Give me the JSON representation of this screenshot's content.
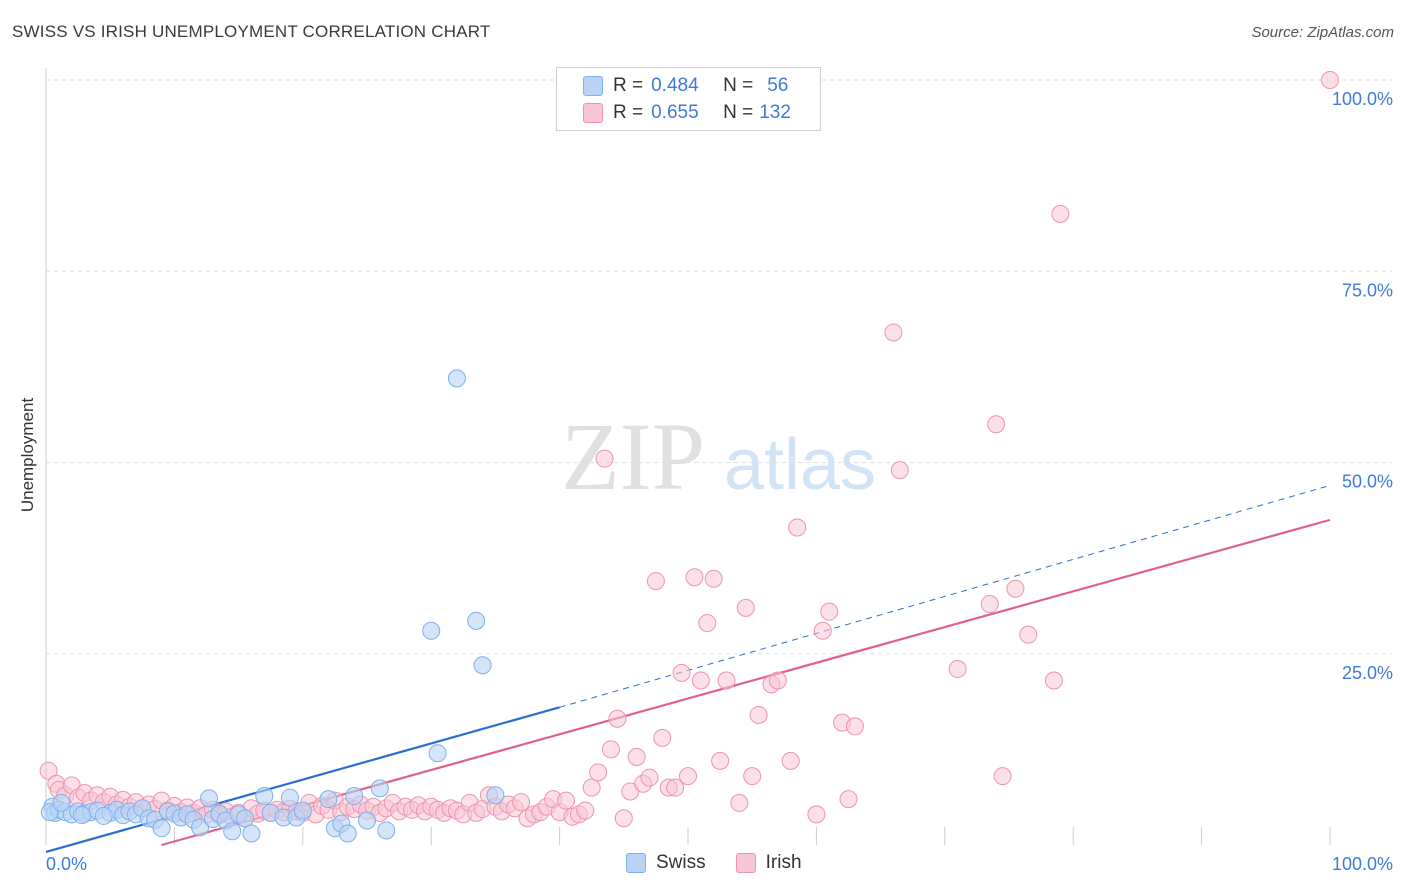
{
  "title": "SWISS VS IRISH UNEMPLOYMENT CORRELATION CHART",
  "source": "Source: ZipAtlas.com",
  "watermark_zip": "ZIP",
  "watermark_atlas": "atlas",
  "colors": {
    "swiss": "#7fb0ea",
    "swiss_fill": "#b9d3f5",
    "swiss_line": "#2a6fcf",
    "irish": "#ee94b0",
    "irish_fill": "#f8c6d6",
    "irish_line": "#e0608c",
    "tick_label": "#3d7bd9",
    "grid": "#dddddd"
  },
  "legend": {
    "swiss": {
      "r_label": "R =",
      "r_value": "0.484",
      "n_label": "N =",
      "n_value": "56"
    },
    "irish": {
      "r_label": "R =",
      "r_value": "0.655",
      "n_label": "N =",
      "n_value": "132"
    }
  },
  "chart_data": {
    "type": "scatter",
    "title": "SWISS VS IRISH UNEMPLOYMENT CORRELATION CHART",
    "xlabel": "",
    "ylabel": "Unemployment",
    "xlim": [
      0,
      100
    ],
    "ylim": [
      0,
      100
    ],
    "x_tick_labels": [
      "0.0%",
      "100.0%"
    ],
    "y_tick_labels": [
      "25.0%",
      "50.0%",
      "75.0%",
      "100.0%"
    ],
    "y_ticks": [
      25,
      50,
      75,
      100
    ],
    "grid": true,
    "legend_position": "top-center",
    "series": [
      {
        "name": "Swiss",
        "r": 0.484,
        "n": 56,
        "trend": {
          "x0": 0,
          "y0": -0.9,
          "x1": 40,
          "y1": 18,
          "dashed_to_x": 100,
          "dashed_to_y": 47
        },
        "points": [
          [
            0.5,
            5.0
          ],
          [
            0.7,
            4.2
          ],
          [
            1.0,
            4.6
          ],
          [
            1.5,
            4.3
          ],
          [
            2.0,
            4.0
          ],
          [
            2.5,
            4.4
          ],
          [
            3.0,
            4.1
          ],
          [
            3.5,
            4.3
          ],
          [
            4.0,
            4.5
          ],
          [
            5.0,
            4.2
          ],
          [
            5.5,
            4.6
          ],
          [
            6.0,
            3.9
          ],
          [
            6.5,
            4.4
          ],
          [
            7.0,
            4.0
          ],
          [
            7.5,
            4.8
          ],
          [
            8.0,
            3.5
          ],
          [
            8.5,
            3.3
          ],
          [
            9.0,
            2.2
          ],
          [
            9.5,
            4.4
          ],
          [
            10.0,
            4.1
          ],
          [
            10.5,
            3.6
          ],
          [
            11.0,
            4.0
          ],
          [
            11.5,
            3.3
          ],
          [
            12.0,
            2.3
          ],
          [
            12.7,
            6.1
          ],
          [
            13.0,
            3.4
          ],
          [
            13.5,
            4.1
          ],
          [
            14.0,
            3.2
          ],
          [
            14.5,
            1.8
          ],
          [
            15.0,
            4.0
          ],
          [
            15.5,
            3.5
          ],
          [
            16.0,
            1.5
          ],
          [
            17.0,
            6.4
          ],
          [
            17.5,
            4.2
          ],
          [
            18.5,
            3.6
          ],
          [
            19.0,
            6.2
          ],
          [
            19.5,
            3.6
          ],
          [
            20.0,
            4.5
          ],
          [
            22.0,
            6.0
          ],
          [
            22.5,
            2.2
          ],
          [
            23.0,
            2.8
          ],
          [
            23.5,
            1.5
          ],
          [
            24.0,
            6.4
          ],
          [
            25.0,
            3.2
          ],
          [
            26.0,
            7.4
          ],
          [
            26.5,
            1.9
          ],
          [
            30.0,
            28.0
          ],
          [
            30.5,
            12.0
          ],
          [
            32.0,
            61.0
          ],
          [
            33.5,
            29.3
          ],
          [
            34.0,
            23.5
          ],
          [
            35.0,
            6.5
          ],
          [
            0.3,
            4.3
          ],
          [
            1.2,
            5.5
          ],
          [
            2.8,
            3.9
          ],
          [
            4.5,
            3.8
          ]
        ]
      },
      {
        "name": "Irish",
        "r": 0.655,
        "n": 132,
        "trend": {
          "x0": 9,
          "y0": 0,
          "x1": 100,
          "y1": 42.5
        },
        "points": [
          [
            0.2,
            9.7
          ],
          [
            0.8,
            8.0
          ],
          [
            1.0,
            7.2
          ],
          [
            1.5,
            6.5
          ],
          [
            2.0,
            7.8
          ],
          [
            2.5,
            6.2
          ],
          [
            3.0,
            6.8
          ],
          [
            3.5,
            5.8
          ],
          [
            4.0,
            6.5
          ],
          [
            4.5,
            5.6
          ],
          [
            5.0,
            6.3
          ],
          [
            5.5,
            5.3
          ],
          [
            6.0,
            5.9
          ],
          [
            6.5,
            5.0
          ],
          [
            7.0,
            5.6
          ],
          [
            7.5,
            4.8
          ],
          [
            8.0,
            5.3
          ],
          [
            8.5,
            4.7
          ],
          [
            9.0,
            5.8
          ],
          [
            9.5,
            4.5
          ],
          [
            10.0,
            5.1
          ],
          [
            10.5,
            4.3
          ],
          [
            11.0,
            4.9
          ],
          [
            11.5,
            4.2
          ],
          [
            12.0,
            4.8
          ],
          [
            12.5,
            4.0
          ],
          [
            13.0,
            4.6
          ],
          [
            13.5,
            3.9
          ],
          [
            14.0,
            4.4
          ],
          [
            14.5,
            3.7
          ],
          [
            15.0,
            4.2
          ],
          [
            15.5,
            3.5
          ],
          [
            16.0,
            4.8
          ],
          [
            16.5,
            4.1
          ],
          [
            17.0,
            4.5
          ],
          [
            17.5,
            4.2
          ],
          [
            18.0,
            4.6
          ],
          [
            18.5,
            4.3
          ],
          [
            19.0,
            4.7
          ],
          [
            19.5,
            4.4
          ],
          [
            20.0,
            4.2
          ],
          [
            20.5,
            5.5
          ],
          [
            21.0,
            4.0
          ],
          [
            21.5,
            5.1
          ],
          [
            22.0,
            4.6
          ],
          [
            22.5,
            5.8
          ],
          [
            23.0,
            4.3
          ],
          [
            23.5,
            5.0
          ],
          [
            24.0,
            4.7
          ],
          [
            24.5,
            5.3
          ],
          [
            25.0,
            4.5
          ],
          [
            25.5,
            5.0
          ],
          [
            26.0,
            4.2
          ],
          [
            26.5,
            4.8
          ],
          [
            27.0,
            5.5
          ],
          [
            27.5,
            4.4
          ],
          [
            28.0,
            5.0
          ],
          [
            28.5,
            4.6
          ],
          [
            29.0,
            5.2
          ],
          [
            29.5,
            4.4
          ],
          [
            30.0,
            5.0
          ],
          [
            30.5,
            4.6
          ],
          [
            31.0,
            4.2
          ],
          [
            31.5,
            4.8
          ],
          [
            32.0,
            4.5
          ],
          [
            32.5,
            4.0
          ],
          [
            33.0,
            5.5
          ],
          [
            33.5,
            4.2
          ],
          [
            34.0,
            4.7
          ],
          [
            34.5,
            6.5
          ],
          [
            35.0,
            5.0
          ],
          [
            35.5,
            4.4
          ],
          [
            36.0,
            5.3
          ],
          [
            36.5,
            4.8
          ],
          [
            37.0,
            5.6
          ],
          [
            37.5,
            3.5
          ],
          [
            38.0,
            4.0
          ],
          [
            38.5,
            4.3
          ],
          [
            39.0,
            5.0
          ],
          [
            39.5,
            6.0
          ],
          [
            40.0,
            4.3
          ],
          [
            40.5,
            5.8
          ],
          [
            41.0,
            3.7
          ],
          [
            41.5,
            4.0
          ],
          [
            42.0,
            4.5
          ],
          [
            42.5,
            7.5
          ],
          [
            43.0,
            9.5
          ],
          [
            43.5,
            50.5
          ],
          [
            44.0,
            12.5
          ],
          [
            44.5,
            16.5
          ],
          [
            45.0,
            3.5
          ],
          [
            45.5,
            7.0
          ],
          [
            46.0,
            11.5
          ],
          [
            46.5,
            8.0
          ],
          [
            47.0,
            8.8
          ],
          [
            47.5,
            34.5
          ],
          [
            48.0,
            14.0
          ],
          [
            48.5,
            7.5
          ],
          [
            49.0,
            7.5
          ],
          [
            49.5,
            22.5
          ],
          [
            50.0,
            9.0
          ],
          [
            50.5,
            35.0
          ],
          [
            51.0,
            21.5
          ],
          [
            51.5,
            29.0
          ],
          [
            52.0,
            34.8
          ],
          [
            52.5,
            11.0
          ],
          [
            53.0,
            21.5
          ],
          [
            54.0,
            5.5
          ],
          [
            54.5,
            31.0
          ],
          [
            55.0,
            9.0
          ],
          [
            55.5,
            17.0
          ],
          [
            56.5,
            21.0
          ],
          [
            57.0,
            21.5
          ],
          [
            58.0,
            11.0
          ],
          [
            58.5,
            41.5
          ],
          [
            60.0,
            4.0
          ],
          [
            60.5,
            28.0
          ],
          [
            61.0,
            30.5
          ],
          [
            62.0,
            16.0
          ],
          [
            62.5,
            6.0
          ],
          [
            63.0,
            15.5
          ],
          [
            66.0,
            67.0
          ],
          [
            66.5,
            49.0
          ],
          [
            71.0,
            23.0
          ],
          [
            73.5,
            31.5
          ],
          [
            74.0,
            55.0
          ],
          [
            74.5,
            9.0
          ],
          [
            75.5,
            33.5
          ],
          [
            76.5,
            27.5
          ],
          [
            78.5,
            21.5
          ],
          [
            79.0,
            82.5
          ],
          [
            100.0,
            100.0
          ]
        ]
      }
    ]
  },
  "bottom_legend": {
    "swiss": "Swiss",
    "irish": "Irish"
  }
}
